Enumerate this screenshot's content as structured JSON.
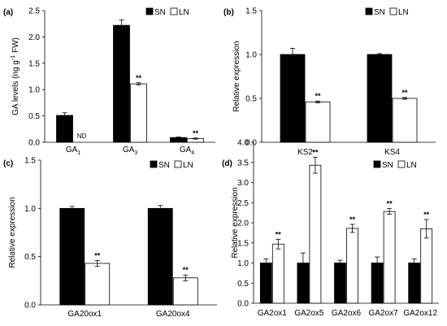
{
  "chart_data": [
    {
      "panel_label": "(a)",
      "type": "bar",
      "ylabel_parts": {
        "pre": "GA levels (ng g",
        "exp": "-1",
        "post": " FW)"
      },
      "ylim": [
        0,
        2.5
      ],
      "yticks": [
        "0.0",
        "0.5",
        "1.0",
        "1.5",
        "2.0",
        "2.5"
      ],
      "categories": [
        {
          "base": "GA",
          "sub": "1"
        },
        {
          "base": "GA",
          "sub": "3"
        },
        {
          "base": "GA",
          "sub": "4"
        }
      ],
      "series": [
        {
          "name": "SN",
          "fill": "#000000",
          "values": [
            0.51,
            2.22,
            0.09
          ],
          "errors": [
            0.05,
            0.1,
            0.01
          ]
        },
        {
          "name": "LN",
          "fill": "#ffffff",
          "values": [
            null,
            1.11,
            0.07
          ],
          "errors": [
            null,
            0.02,
            0.01
          ]
        }
      ],
      "annotations": [
        {
          "category": 0,
          "series": 1,
          "text": "ND"
        },
        {
          "category": 1,
          "series": 1,
          "text": "**"
        },
        {
          "category": 2,
          "series": 1,
          "text": "**"
        }
      ]
    },
    {
      "panel_label": "(b)",
      "type": "bar",
      "ylabel": "Relative expression",
      "ylim": [
        0,
        1.5
      ],
      "yticks": [
        "0.0",
        "0.5",
        "1.0",
        "1.5"
      ],
      "categories": [
        "KS2",
        "KS4"
      ],
      "series": [
        {
          "name": "SN",
          "fill": "#000000",
          "values": [
            1.0,
            1.0
          ],
          "errors": [
            0.07,
            0.01
          ]
        },
        {
          "name": "LN",
          "fill": "#ffffff",
          "values": [
            0.46,
            0.5
          ],
          "errors": [
            0.01,
            0.01
          ]
        }
      ],
      "annotations": [
        {
          "category": 0,
          "series": 1,
          "text": "**"
        },
        {
          "category": 1,
          "series": 1,
          "text": "**"
        }
      ]
    },
    {
      "panel_label": "(c)",
      "type": "bar",
      "ylabel": "Relative expression",
      "ylim": [
        0,
        1.5
      ],
      "yticks": [
        "0.0",
        "0.5",
        "1.0",
        "1.5"
      ],
      "categories": [
        "GA20ox1",
        "GA20ox4"
      ],
      "series": [
        {
          "name": "SN",
          "fill": "#000000",
          "values": [
            1.0,
            1.0
          ],
          "errors": [
            0.02,
            0.03
          ]
        },
        {
          "name": "LN",
          "fill": "#ffffff",
          "values": [
            0.43,
            0.28
          ],
          "errors": [
            0.03,
            0.03
          ]
        }
      ],
      "annotations": [
        {
          "category": 0,
          "series": 1,
          "text": "**"
        },
        {
          "category": 1,
          "series": 1,
          "text": "**"
        }
      ]
    },
    {
      "panel_label": "(d)",
      "type": "bar",
      "ylabel": "Relative expression",
      "ylim": [
        0,
        4.0
      ],
      "yticks": [
        "0.0",
        "0.5",
        "1.0",
        "1.5",
        "2.0",
        "2.5",
        "3.0",
        "3.5",
        "4.0"
      ],
      "categories": [
        "GA2ox1",
        "GA2ox5",
        "GA2ox6",
        "GA2ox7",
        "GA2ox12"
      ],
      "series": [
        {
          "name": "SN",
          "fill": "#000000",
          "values": [
            1.0,
            1.0,
            1.0,
            1.0,
            1.0
          ],
          "errors": [
            0.1,
            0.25,
            0.07,
            0.15,
            0.1
          ]
        },
        {
          "name": "LN",
          "fill": "#ffffff",
          "values": [
            1.47,
            3.43,
            1.86,
            2.28,
            1.85
          ],
          "errors": [
            0.12,
            0.2,
            0.1,
            0.07,
            0.23
          ]
        }
      ],
      "annotations": [
        {
          "category": 0,
          "series": 1,
          "text": "**"
        },
        {
          "category": 1,
          "series": 1,
          "text": "**"
        },
        {
          "category": 2,
          "series": 1,
          "text": "**"
        },
        {
          "category": 3,
          "series": 1,
          "text": "**"
        },
        {
          "category": 4,
          "series": 1,
          "text": "**"
        }
      ]
    }
  ]
}
